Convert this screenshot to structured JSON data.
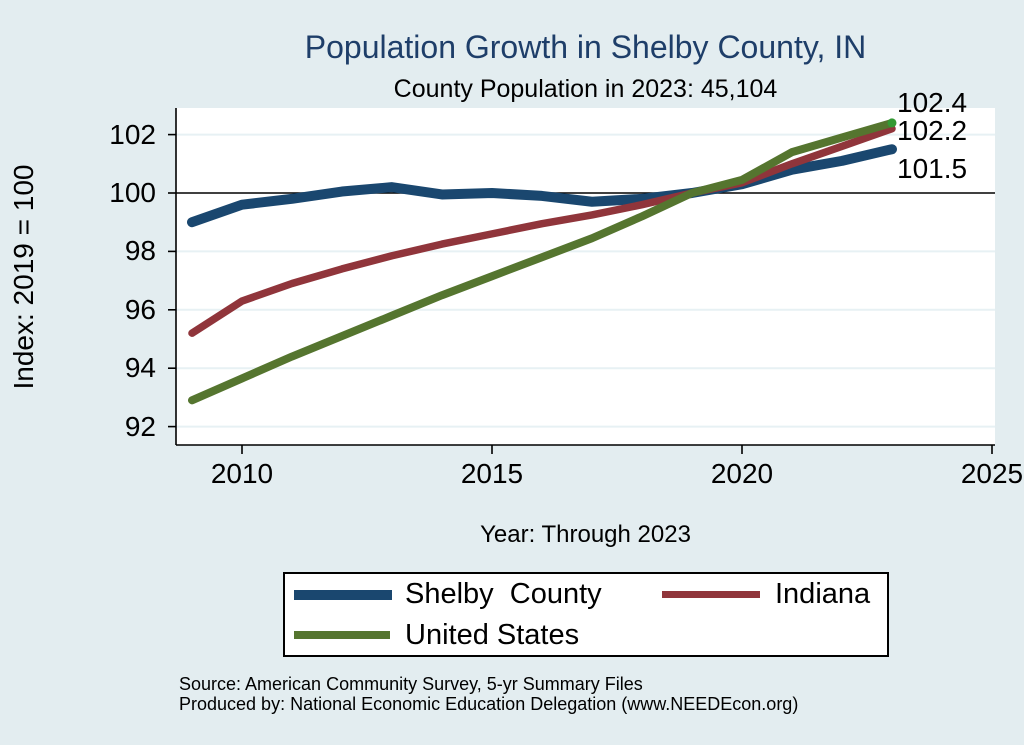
{
  "page": {
    "background_color": "#e3edf0",
    "plot_background": "#ffffff",
    "gridline_color": "#e7f1f4",
    "title_color": "#1e3e69"
  },
  "header": {
    "title": "Population Growth in Shelby County, IN",
    "subtitle": "County Population in 2023: 45,104"
  },
  "chart_data": {
    "type": "line",
    "title": "Population Growth in Shelby County, IN",
    "subtitle": "County Population in 2023: 45,104",
    "xlabel": "Year: Through 2023",
    "ylabel": "Index: 2019 = 100",
    "x": [
      2009,
      2010,
      2011,
      2012,
      2013,
      2014,
      2015,
      2016,
      2017,
      2018,
      2019,
      2020,
      2021,
      2022,
      2023
    ],
    "series": [
      {
        "name": "Shelby  County",
        "color": "#1a476f",
        "line_width": 10,
        "values": [
          99.0,
          99.6,
          99.8,
          100.05,
          100.2,
          99.95,
          100.0,
          99.9,
          99.7,
          99.8,
          100.0,
          100.3,
          100.8,
          101.1,
          101.5
        ],
        "end_label": "101.5"
      },
      {
        "name": "Indiana",
        "color": "#90353b",
        "line_width": 7.5,
        "values": [
          95.2,
          96.3,
          96.9,
          97.4,
          97.85,
          98.25,
          98.6,
          98.95,
          99.25,
          99.6,
          100.0,
          100.35,
          101.0,
          101.6,
          102.2
        ],
        "end_label": "102.2"
      },
      {
        "name": "United States",
        "color": "#55752f",
        "line_width": 8,
        "values": [
          92.9,
          93.65,
          94.4,
          95.1,
          95.8,
          96.5,
          97.15,
          97.8,
          98.45,
          99.2,
          100.0,
          100.45,
          101.4,
          101.9,
          102.4
        ],
        "end_label": "102.4",
        "end_marker_color": "#339933"
      }
    ],
    "x_ticks": [
      "2010",
      "2015",
      "2020",
      "2025"
    ],
    "x_tick_values": [
      2010,
      2015,
      2020,
      2025
    ],
    "y_ticks": [
      "102",
      "100",
      "98",
      "96",
      "94",
      "92"
    ],
    "y_tick_values": [
      102,
      100,
      98,
      96,
      94,
      92
    ],
    "xlim": [
      2008.7,
      2025.1
    ],
    "ylim": [
      91.4,
      102.9
    ],
    "reference_line_y": 100,
    "grid": true,
    "legend_position": "bottom"
  },
  "footer": {
    "source_line1": "Source: American Community Survey, 5-yr Summary Files",
    "source_line2": "Produced by: National Economic Education Delegation (www.NEEDEcon.org)"
  }
}
